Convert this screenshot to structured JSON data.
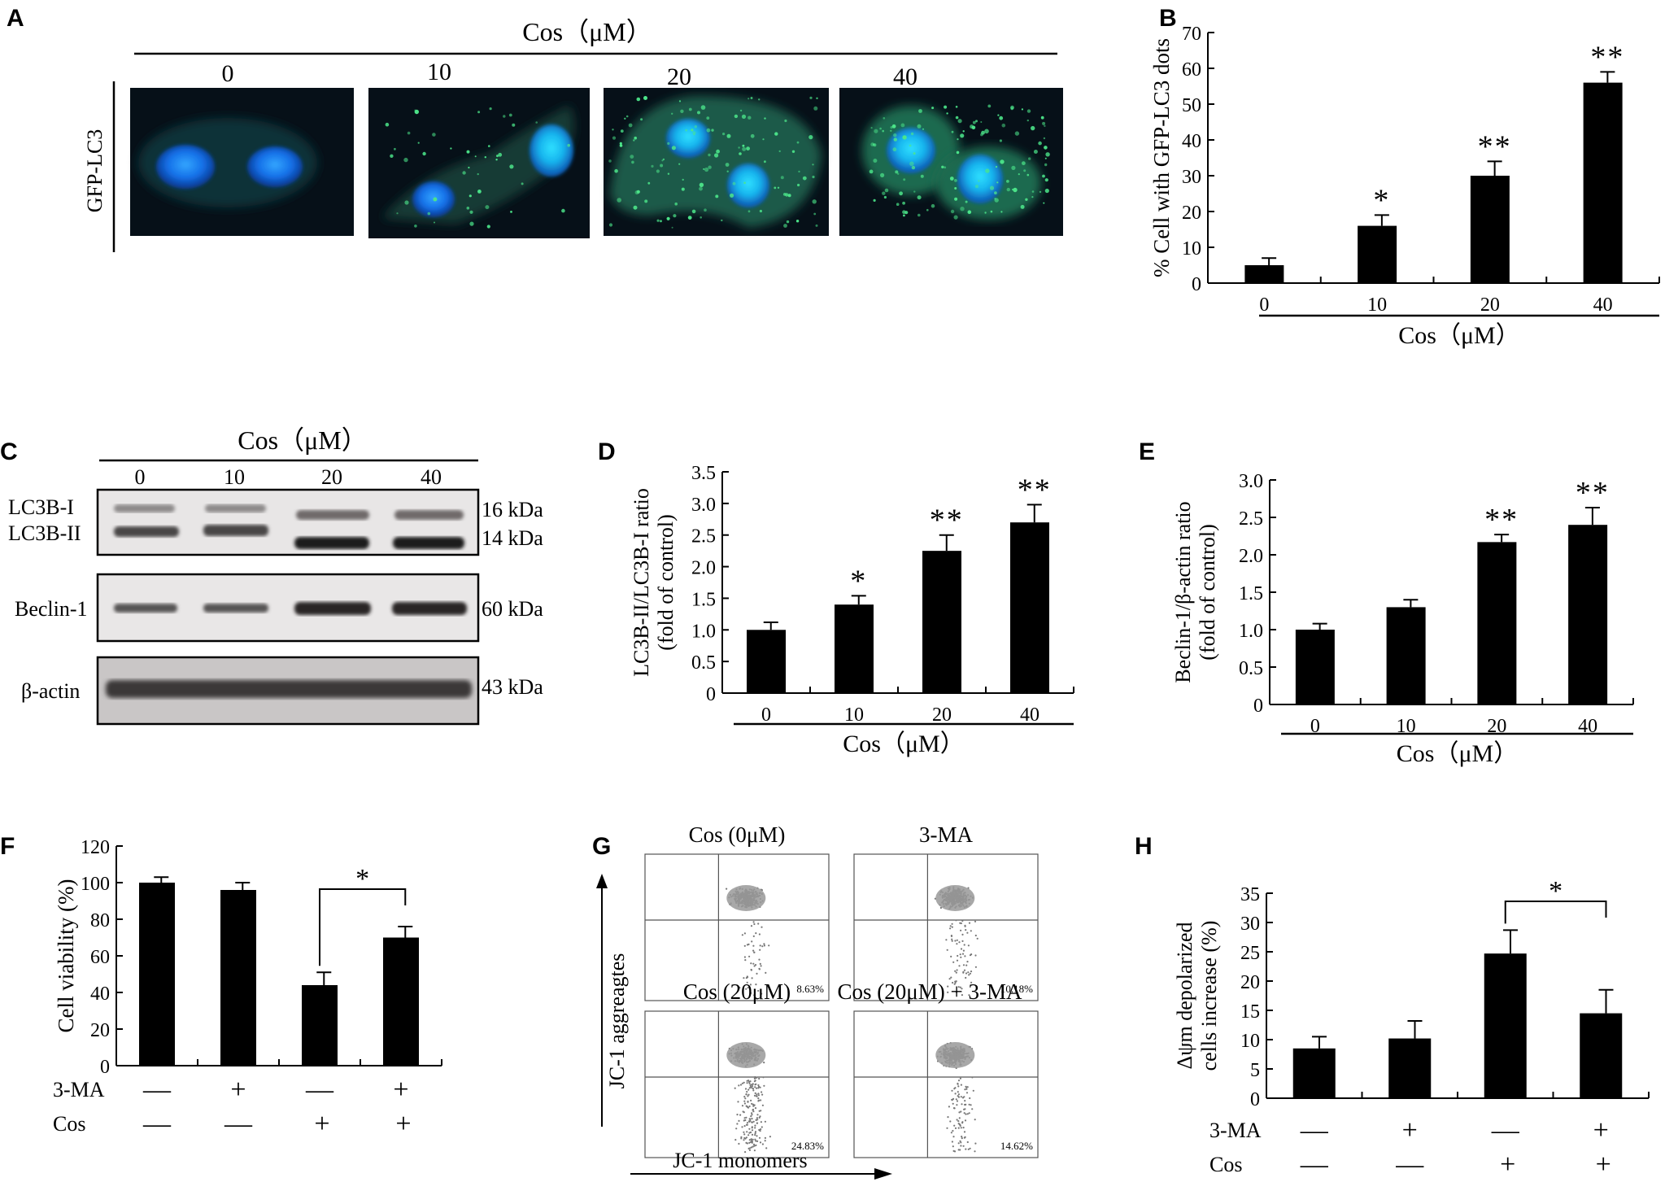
{
  "panel_labels": [
    "A",
    "B",
    "C",
    "D",
    "E",
    "F",
    "G",
    "H"
  ],
  "panel_a": {
    "header": "Cos（μM）",
    "doses": [
      "0",
      "10",
      "20",
      "40"
    ],
    "row_label": "GFP-LC3"
  },
  "panel_c": {
    "header": "Cos（μM）",
    "doses": [
      "0",
      "10",
      "20",
      "40"
    ],
    "rows": [
      {
        "label": "LC3B-I",
        "size": "16 kDa"
      },
      {
        "label": "LC3B-II",
        "size": "14 kDa"
      },
      {
        "label": "Beclin-1",
        "size": "60 kDa"
      },
      {
        "label": "β-actin",
        "size": "43 kDa"
      }
    ]
  },
  "panel_g": {
    "titles": [
      "Cos (0μM)",
      "3-MA",
      "Cos (20μM)",
      "Cos (20μM) + 3-MA"
    ],
    "percents": [
      "8.63%",
      "10.18%",
      "24.83%",
      "14.62%"
    ],
    "ylabel": "JC-1 aggreagtes",
    "xlabel": "JC-1 monomers"
  },
  "chart_data": [
    {
      "panel": "B",
      "type": "bar",
      "categories": [
        "0",
        "10",
        "20",
        "40"
      ],
      "values": [
        5,
        16,
        30,
        56
      ],
      "errors": [
        2,
        3,
        4,
        3
      ],
      "sig": [
        "",
        "*",
        "**",
        "**"
      ],
      "ylim": [
        0,
        70
      ],
      "yticks": [
        "0",
        "10",
        "20",
        "30",
        "40",
        "50",
        "60",
        "70"
      ],
      "ylabel": "% Cell with GFP-LC3 dots",
      "xlabel": "Cos（μM）"
    },
    {
      "panel": "D",
      "type": "bar",
      "categories": [
        "0",
        "10",
        "20",
        "40"
      ],
      "values": [
        1.0,
        1.4,
        2.25,
        2.7
      ],
      "errors": [
        0.12,
        0.14,
        0.25,
        0.28
      ],
      "sig": [
        "",
        "*",
        "**",
        "**"
      ],
      "ylim": [
        0,
        3.5
      ],
      "yticks": [
        "0",
        "0.5",
        "1.0",
        "1.5",
        "2.0",
        "2.5",
        "3.0",
        "3.5"
      ],
      "ylabel": "LC3B-II/LC3B-I ratio",
      "ylabel2": "(fold of control)",
      "xlabel": "Cos（μM）"
    },
    {
      "panel": "E",
      "type": "bar",
      "categories": [
        "0",
        "10",
        "20",
        "40"
      ],
      "values": [
        1.0,
        1.3,
        2.17,
        2.4
      ],
      "errors": [
        0.08,
        0.1,
        0.1,
        0.23
      ],
      "sig": [
        "",
        "",
        "**",
        "**"
      ],
      "ylim": [
        0,
        3.0
      ],
      "yticks": [
        "0",
        "0.5",
        "1.0",
        "1.5",
        "2.0",
        "2.5",
        "3.0"
      ],
      "ylabel": "Beclin-1/β-actin ratio",
      "ylabel2": "(fold of control)",
      "xlabel": "Cos（μM）"
    },
    {
      "panel": "F",
      "type": "bar",
      "values": [
        100,
        96,
        44,
        70
      ],
      "errors": [
        3,
        4,
        7,
        6
      ],
      "ylim": [
        0,
        120
      ],
      "yticks": [
        "0",
        "20",
        "40",
        "60",
        "80",
        "100",
        "120"
      ],
      "ylabel": "Cell viability (%)",
      "treat_labels": [
        "3-MA",
        "Cos"
      ],
      "treat_3ma": [
        "—",
        "+",
        "—",
        "+"
      ],
      "treat_cos": [
        "—",
        "—",
        "+",
        "+"
      ],
      "sig_bracket": "*"
    },
    {
      "panel": "H",
      "type": "bar",
      "values": [
        8.5,
        10.2,
        24.7,
        14.5
      ],
      "errors": [
        2,
        3,
        4,
        4
      ],
      "ylim": [
        0,
        35
      ],
      "yticks": [
        "0",
        "5",
        "10",
        "15",
        "20",
        "25",
        "30",
        "35"
      ],
      "ylabel": "Δψm depolarized",
      "ylabel2": "cells increase (%)",
      "treat_labels": [
        "3-MA",
        "Cos"
      ],
      "treat_3ma": [
        "—",
        "+",
        "—",
        "+"
      ],
      "treat_cos": [
        "—",
        "—",
        "+",
        "+"
      ],
      "sig_bracket": "*"
    }
  ]
}
